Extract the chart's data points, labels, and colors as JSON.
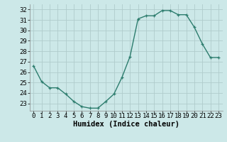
{
  "x": [
    0,
    1,
    2,
    3,
    4,
    5,
    6,
    7,
    8,
    9,
    10,
    11,
    12,
    13,
    14,
    15,
    16,
    17,
    18,
    19,
    20,
    21,
    22,
    23
  ],
  "y": [
    26.6,
    25.1,
    24.5,
    24.5,
    23.9,
    23.2,
    22.7,
    22.55,
    22.55,
    23.2,
    23.9,
    25.5,
    27.5,
    31.1,
    31.4,
    31.4,
    31.9,
    31.9,
    31.5,
    31.5,
    30.3,
    28.7,
    27.4,
    27.4
  ],
  "line_color": "#2d7d6e",
  "marker": "+",
  "bg_color": "#cce8e8",
  "grid_color": "#b0cccc",
  "xlabel": "Humidex (Indice chaleur)",
  "ylim": [
    22.3,
    32.5
  ],
  "xlim": [
    -0.5,
    23.5
  ],
  "yticks": [
    23,
    24,
    25,
    26,
    27,
    28,
    29,
    30,
    31,
    32
  ],
  "xticks": [
    0,
    1,
    2,
    3,
    4,
    5,
    6,
    7,
    8,
    9,
    10,
    11,
    12,
    13,
    14,
    15,
    16,
    17,
    18,
    19,
    20,
    21,
    22,
    23
  ],
  "label_fontsize": 7.5,
  "tick_fontsize": 6.5,
  "linewidth": 1.0,
  "markersize": 3.5
}
